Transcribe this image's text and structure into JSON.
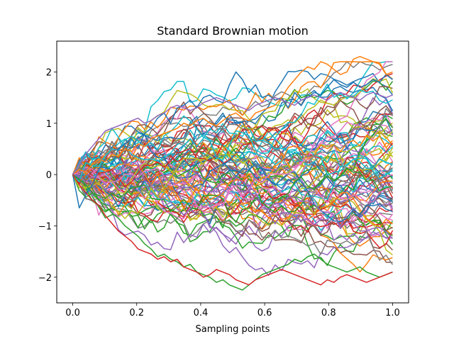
{
  "chart_data": {
    "type": "line",
    "title": "Standard Brownian motion",
    "xlabel": "Sampling points",
    "ylabel": "",
    "xlim": [
      -0.05,
      1.05
    ],
    "ylim": [
      -2.5,
      2.6
    ],
    "x_ticks": [
      0.0,
      0.2,
      0.4,
      0.6,
      0.8,
      1.0
    ],
    "x_tick_labels": [
      "0.0",
      "0.2",
      "0.4",
      "0.6",
      "0.8",
      "1.0"
    ],
    "y_ticks": [
      -2,
      -1,
      0,
      1,
      2
    ],
    "y_tick_labels": [
      "−2",
      "−1",
      "0",
      "1",
      "2"
    ],
    "grid": false,
    "legend": "none",
    "x": [
      0.0,
      0.0204,
      0.0408,
      0.0612,
      0.0816,
      0.102,
      0.1224,
      0.1429,
      0.1633,
      0.1837,
      0.2041,
      0.2245,
      0.2449,
      0.2653,
      0.2857,
      0.3061,
      0.3265,
      0.3469,
      0.3673,
      0.3878,
      0.4082,
      0.4286,
      0.449,
      0.4694,
      0.4898,
      0.5102,
      0.5306,
      0.551,
      0.5714,
      0.5918,
      0.6122,
      0.6327,
      0.6531,
      0.6735,
      0.6939,
      0.7143,
      0.7347,
      0.7551,
      0.7755,
      0.7959,
      0.8163,
      0.8367,
      0.8571,
      0.8776,
      0.898,
      0.9184,
      0.9388,
      0.9592,
      0.9796,
      1.0
    ],
    "series_count": 100,
    "colors": [
      "#1f77b4",
      "#ff7f0e",
      "#2ca02c",
      "#d62728",
      "#9467bd",
      "#8c564b",
      "#e377c2",
      "#7f7f7f",
      "#bcbd22",
      "#17becf"
    ],
    "series": [
      {
        "values": [
          0,
          -0.65,
          -0.4,
          -0.2,
          0.1,
          0.3,
          0.2,
          0.5,
          0.6,
          0.7,
          0.5,
          0.8,
          0.9,
          1.1,
          1.2,
          1.0,
          1.3,
          1.35,
          1.45,
          1.3,
          1.5,
          1.55,
          1.45,
          1.4,
          1.75,
          2.0,
          1.85,
          1.6,
          1.75,
          1.5,
          1.55,
          1.45,
          1.5,
          1.3,
          1.6,
          1.45,
          1.5,
          1.6,
          1.55,
          1.7,
          1.85,
          1.75,
          1.7,
          1.8,
          1.7,
          1.75,
          1.85,
          1.8,
          1.95,
          1.85
        ]
      },
      {
        "values": [
          0,
          0.1,
          0.05,
          0.2,
          0.3,
          0.25,
          0.4,
          0.35,
          0.5,
          0.45,
          0.6,
          0.55,
          0.7,
          0.75,
          0.8,
          0.85,
          0.9,
          1.0,
          0.95,
          1.05,
          1.1,
          1.0,
          0.95,
          1.05,
          1.15,
          1.2,
          1.1,
          1.05,
          1.2,
          1.25,
          1.3,
          1.35,
          1.5,
          1.7,
          1.85,
          2.0,
          2.1,
          2.05,
          2.2,
          2.15,
          2.05,
          1.95,
          2.0,
          2.25,
          2.3,
          2.25,
          2.2,
          2.15,
          1.95,
          2.0
        ]
      },
      {
        "values": [
          0,
          -0.1,
          -0.2,
          -0.35,
          -0.5,
          -0.6,
          -0.75,
          -0.85,
          -1.0,
          -1.1,
          -1.2,
          -1.35,
          -1.45,
          -1.6,
          -1.55,
          -1.65,
          -1.7,
          -1.8,
          -1.75,
          -1.9,
          -1.95,
          -2.0,
          -2.1,
          -2.05,
          -2.15,
          -2.2,
          -2.25,
          -2.15,
          -2.05,
          -1.95,
          -1.9,
          -1.85,
          -1.8,
          -1.75,
          -1.65,
          -1.7,
          -1.6,
          -1.55,
          -1.65,
          -1.75,
          -1.8,
          -1.85,
          -1.9,
          -1.85,
          -1.8,
          -1.9,
          -1.95,
          -2.0,
          -1.95,
          -1.9
        ]
      },
      {
        "values": [
          0,
          -0.2,
          -0.35,
          -0.5,
          -0.6,
          -0.8,
          -0.95,
          -1.1,
          -1.2,
          -1.3,
          -1.45,
          -1.5,
          -1.55,
          -1.65,
          -1.6,
          -1.7,
          -1.65,
          -1.8,
          -1.85,
          -1.9,
          -2.0,
          -1.95,
          -1.85,
          -1.9,
          -1.95,
          -2.05,
          -2.1,
          -2.15,
          -2.05,
          -2.0,
          -1.95,
          -1.9,
          -1.85,
          -1.9,
          -1.95,
          -2.0,
          -2.05,
          -2.1,
          -2.15,
          -2.05,
          -2.1,
          -2.0,
          -1.95,
          -2.0,
          -2.05,
          -2.1,
          -2.05,
          -2.0,
          -1.95,
          -1.9
        ]
      },
      {
        "values": [
          0,
          0.2,
          0.4,
          0.55,
          0.7,
          0.85,
          0.9,
          0.95,
          1.0,
          1.05,
          1.1,
          1.0,
          1.05,
          1.15,
          1.2,
          1.3,
          1.35,
          1.3,
          1.25,
          1.3,
          1.4,
          1.45,
          1.5,
          1.45,
          1.4,
          1.35,
          1.3,
          1.25,
          1.35,
          1.4,
          1.45,
          1.5,
          1.45,
          1.4,
          1.35,
          1.45,
          1.5,
          1.55,
          1.5,
          1.45,
          1.55,
          1.6,
          1.55,
          1.5,
          1.45,
          1.55,
          1.6,
          1.55,
          1.5,
          1.55
        ]
      }
    ],
    "random_seed": 7
  }
}
